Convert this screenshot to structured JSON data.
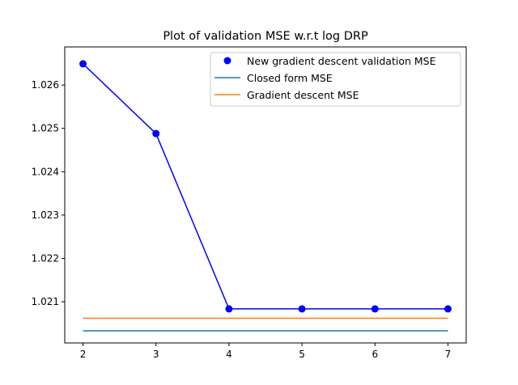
{
  "chart_data": {
    "type": "line",
    "title": "Plot of validation MSE w.r.t log DRP",
    "xlabel": "",
    "ylabel": "",
    "xlim": [
      1.75,
      7.25
    ],
    "ylim": [
      1.02005,
      1.02688
    ],
    "xticks": [
      2,
      3,
      4,
      5,
      6,
      7
    ],
    "yticks": [
      1.021,
      1.022,
      1.023,
      1.024,
      1.025,
      1.026
    ],
    "grid": false,
    "legend_position": "top-right",
    "series": [
      {
        "name": "New gradient descent validation MSE",
        "kind": "line+markers",
        "color": "#0000ff",
        "x": [
          2,
          3,
          4,
          5,
          6,
          7
        ],
        "y": [
          1.02649,
          1.02488,
          1.020835,
          1.020835,
          1.020835,
          1.020835
        ]
      },
      {
        "name": "Closed form MSE",
        "kind": "line",
        "color": "#1f77b4",
        "x": [
          2,
          7
        ],
        "y": [
          1.02033,
          1.02033
        ]
      },
      {
        "name": "Gradient descent MSE",
        "kind": "line",
        "color": "#ff7f0e",
        "x": [
          2,
          7
        ],
        "y": [
          1.02062,
          1.02062
        ]
      }
    ]
  }
}
